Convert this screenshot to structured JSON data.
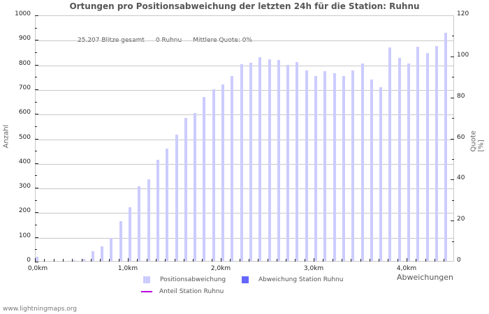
{
  "title": "Ortungen pro Positionsabweichung der letzten 24h für die Station: Ruhnu",
  "stats": {
    "total": "25.207 Blitze gesamt",
    "station": "0 Ruhnu",
    "quota": "Mittlere Quote: 0%"
  },
  "axes": {
    "left_title": "Anzahl",
    "right_title": "Quote [%]",
    "x_title": "Abweichungen",
    "left_ticks": [
      "0",
      "100",
      "200",
      "300",
      "400",
      "500",
      "600",
      "700",
      "800",
      "900",
      "1000"
    ],
    "right_ticks": [
      "0",
      "20",
      "40",
      "60",
      "80",
      "100",
      "120"
    ],
    "x_ticks": [
      "0,0km",
      "1,0km",
      "2,0km",
      "3,0km",
      "4,0km"
    ]
  },
  "legend": {
    "item1": "Positionsabweichung",
    "item2": "Abweichung Station Ruhnu",
    "item3": "Anteil Station Ruhnu"
  },
  "colors": {
    "bar_all": "#ccccff",
    "bar_station": "#6666ff",
    "line_share": "#bb00dd",
    "grid": "#c8c8c8"
  },
  "footer": "www.lightningmaps.org",
  "chart_data": {
    "type": "bar",
    "title": "Ortungen pro Positionsabweichung der letzten 24h für die Station: Ruhnu",
    "xlabel": "Abweichungen",
    "ylabel": "Anzahl",
    "y2label": "Quote [%]",
    "ylim": [
      0,
      1000
    ],
    "y2lim": [
      0,
      120
    ],
    "grid": true,
    "legend_position": "bottom",
    "categories": [
      "0.0",
      "0.1",
      "0.2",
      "0.3",
      "0.4",
      "0.5",
      "0.6",
      "0.7",
      "0.8",
      "0.9",
      "1.0",
      "1.1",
      "1.2",
      "1.3",
      "1.4",
      "1.5",
      "1.6",
      "1.7",
      "1.8",
      "1.9",
      "2.0",
      "2.1",
      "2.2",
      "2.3",
      "2.4",
      "2.5",
      "2.6",
      "2.7",
      "2.8",
      "2.9",
      "3.0",
      "3.1",
      "3.2",
      "3.3",
      "3.4",
      "3.5",
      "3.6",
      "3.7",
      "3.8",
      "3.9",
      "4.0",
      "4.1",
      "4.2",
      "4.3",
      "4.4"
    ],
    "series": [
      {
        "name": "Positionsabweichung",
        "values": [
          17,
          0,
          0,
          0,
          3,
          9,
          40,
          60,
          94,
          162,
          219,
          304,
          332,
          412,
          458,
          514,
          582,
          602,
          667,
          699,
          719,
          753,
          800,
          806,
          831,
          820,
          817,
          799,
          809,
          775,
          753,
          772,
          764,
          753,
          775,
          803,
          739,
          708,
          869,
          826,
          803,
          872,
          847,
          875,
          928
        ]
      },
      {
        "name": "Abweichung Station Ruhnu",
        "values": [
          0,
          0,
          0,
          0,
          0,
          0,
          0,
          0,
          0,
          0,
          0,
          0,
          0,
          0,
          0,
          0,
          0,
          0,
          0,
          0,
          0,
          0,
          0,
          0,
          0,
          0,
          0,
          0,
          0,
          0,
          0,
          0,
          0,
          0,
          0,
          0,
          0,
          0,
          0,
          0,
          0,
          0,
          0,
          0,
          0
        ]
      },
      {
        "name": "Anteil Station Ruhnu",
        "axis": "right",
        "values": [
          0,
          0,
          0,
          0,
          0,
          0,
          0,
          0,
          0,
          0,
          0,
          0,
          0,
          0,
          0,
          0,
          0,
          0,
          0,
          0,
          0,
          0,
          0,
          0,
          0,
          0,
          0,
          0,
          0,
          0,
          0,
          0,
          0,
          0,
          0,
          0,
          0,
          0,
          0,
          0,
          0,
          0,
          0,
          0,
          0
        ]
      }
    ]
  }
}
